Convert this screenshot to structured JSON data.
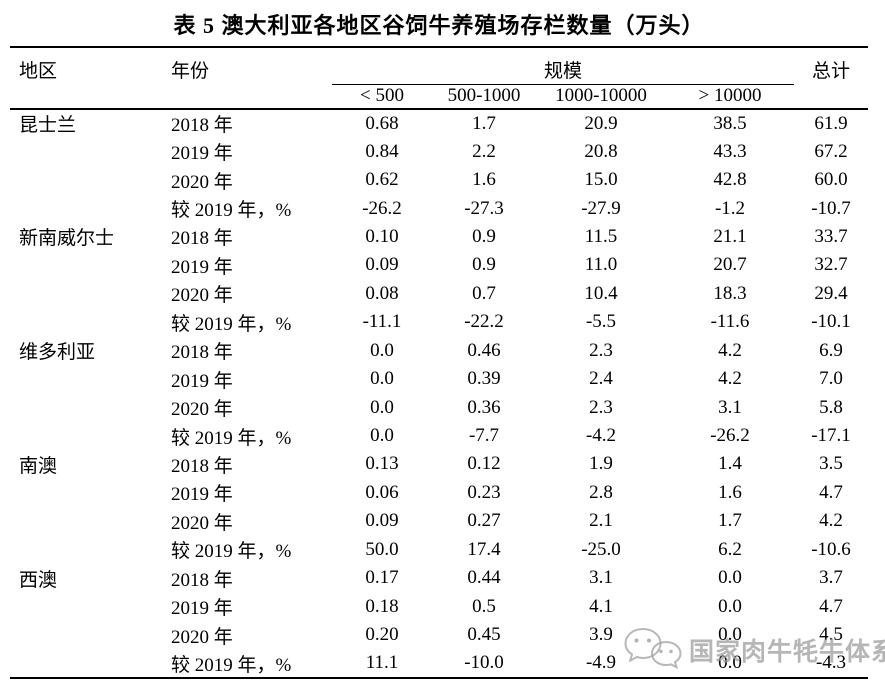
{
  "title": "表 5 澳大利亚各地区谷饲牛养殖场存栏数量（万头）",
  "table": {
    "headers": {
      "region": "地区",
      "year": "年份",
      "scale": "规模",
      "total": "总计",
      "scale_columns": [
        "< 500",
        "500-1000",
        "1000-10000",
        "> 10000"
      ]
    },
    "groups": [
      {
        "region": "昆士兰",
        "rows": [
          {
            "year": "2018 年",
            "values": [
              "0.68",
              "1.7",
              "20.9",
              "38.5",
              "61.9"
            ]
          },
          {
            "year": "2019 年",
            "values": [
              "0.84",
              "2.2",
              "20.8",
              "43.3",
              "67.2"
            ]
          },
          {
            "year": "2020 年",
            "values": [
              "0.62",
              "1.6",
              "15.0",
              "42.8",
              "60.0"
            ]
          },
          {
            "year": "较 2019 年，%",
            "values": [
              "-26.2",
              "-27.3",
              "-27.9",
              "-1.2",
              "-10.7"
            ]
          }
        ]
      },
      {
        "region": "新南威尔士",
        "rows": [
          {
            "year": "2018 年",
            "values": [
              "0.10",
              "0.9",
              "11.5",
              "21.1",
              "33.7"
            ]
          },
          {
            "year": "2019 年",
            "values": [
              "0.09",
              "0.9",
              "11.0",
              "20.7",
              "32.7"
            ]
          },
          {
            "year": "2020 年",
            "values": [
              "0.08",
              "0.7",
              "10.4",
              "18.3",
              "29.4"
            ]
          },
          {
            "year": "较 2019 年，%",
            "values": [
              "-11.1",
              "-22.2",
              "-5.5",
              "-11.6",
              "-10.1"
            ]
          }
        ]
      },
      {
        "region": "维多利亚",
        "rows": [
          {
            "year": "2018 年",
            "values": [
              "0.0",
              "0.46",
              "2.3",
              "4.2",
              "6.9"
            ]
          },
          {
            "year": "2019 年",
            "values": [
              "0.0",
              "0.39",
              "2.4",
              "4.2",
              "7.0"
            ]
          },
          {
            "year": "2020 年",
            "values": [
              "0.0",
              "0.36",
              "2.3",
              "3.1",
              "5.8"
            ]
          },
          {
            "year": "较 2019 年，%",
            "values": [
              "0.0",
              "-7.7",
              "-4.2",
              "-26.2",
              "-17.1"
            ]
          }
        ]
      },
      {
        "region": "南澳",
        "rows": [
          {
            "year": "2018 年",
            "values": [
              "0.13",
              "0.12",
              "1.9",
              "1.4",
              "3.5"
            ]
          },
          {
            "year": "2019 年",
            "values": [
              "0.06",
              "0.23",
              "2.8",
              "1.6",
              "4.7"
            ]
          },
          {
            "year": "2020 年",
            "values": [
              "0.09",
              "0.27",
              "2.1",
              "1.7",
              "4.2"
            ]
          },
          {
            "year": "较 2019 年，%",
            "values": [
              "50.0",
              "17.4",
              "-25.0",
              "6.2",
              "-10.6"
            ]
          }
        ]
      },
      {
        "region": "西澳",
        "rows": [
          {
            "year": "2018 年",
            "values": [
              "0.17",
              "0.44",
              "3.1",
              "0.0",
              "3.7"
            ]
          },
          {
            "year": "2019 年",
            "values": [
              "0.18",
              "0.5",
              "4.1",
              "0.0",
              "4.7"
            ]
          },
          {
            "year": "2020 年",
            "values": [
              "0.20",
              "0.45",
              "3.9",
              "0.0",
              "4.5"
            ]
          },
          {
            "year": "较 2019 年，%",
            "values": [
              "11.1",
              "-10.0",
              "-4.9",
              "0.0",
              "-4.3"
            ]
          }
        ]
      }
    ]
  },
  "watermark": {
    "text": "国家肉牛牦牛体系",
    "icon": "wechat-icon",
    "color": "#9e9e9e"
  },
  "colors": {
    "text": "#000000",
    "background": "#ffffff",
    "rule": "#000000"
  }
}
